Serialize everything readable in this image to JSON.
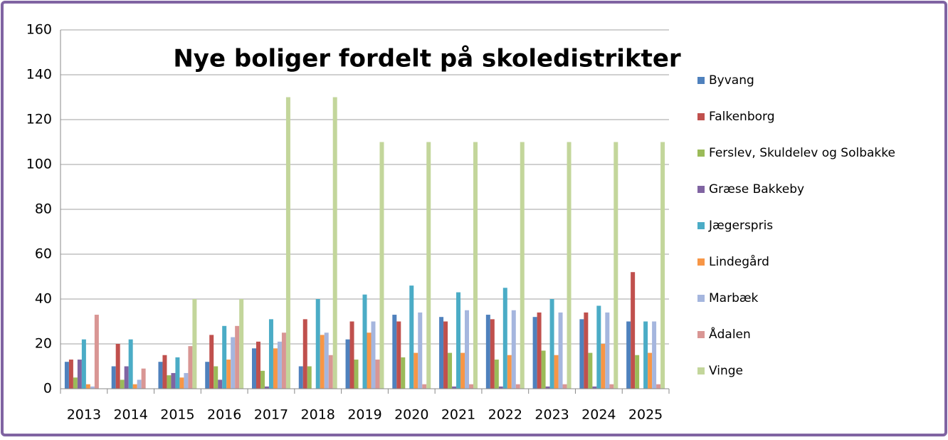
{
  "chart_data": {
    "type": "bar",
    "title": "Nye boliger fordelt på skoledistrikter",
    "categories": [
      "2013",
      "2014",
      "2015",
      "2016",
      "2017",
      "2018",
      "2019",
      "2020",
      "2021",
      "2022",
      "2023",
      "2024",
      "2025"
    ],
    "series": [
      {
        "name": "Byvang",
        "color": "#4f81bd",
        "values": [
          12,
          10,
          12,
          12,
          18,
          10,
          22,
          33,
          32,
          33,
          32,
          31,
          30
        ]
      },
      {
        "name": "Falkenborg",
        "color": "#c0504d",
        "values": [
          13,
          20,
          15,
          24,
          21,
          31,
          30,
          30,
          30,
          31,
          34,
          34,
          52
        ]
      },
      {
        "name": "Ferslev, Skuldelev og Solbakke",
        "color": "#9bbb59",
        "values": [
          5,
          4,
          6,
          10,
          8,
          10,
          13,
          14,
          16,
          13,
          17,
          16,
          15
        ]
      },
      {
        "name": "Græse Bakkeby",
        "color": "#8064a2",
        "values": [
          13,
          10,
          7,
          4,
          1,
          0,
          0,
          0,
          1,
          1,
          1,
          1,
          0
        ]
      },
      {
        "name": "Jægerspris",
        "color": "#4bacc6",
        "values": [
          22,
          22,
          14,
          28,
          31,
          40,
          42,
          46,
          43,
          45,
          40,
          37,
          30
        ]
      },
      {
        "name": "Lindegård",
        "color": "#f79646",
        "values": [
          2,
          2,
          5,
          13,
          18,
          24,
          25,
          16,
          16,
          15,
          15,
          20,
          16
        ]
      },
      {
        "name": "Marbæk",
        "color": "#a5b6de",
        "values": [
          1,
          4,
          7,
          23,
          21,
          25,
          30,
          34,
          35,
          35,
          34,
          34,
          30
        ]
      },
      {
        "name": "Ådalen",
        "color": "#d99694",
        "values": [
          33,
          9,
          19,
          28,
          25,
          15,
          13,
          2,
          2,
          2,
          2,
          2,
          2
        ]
      },
      {
        "name": "Vinge",
        "color": "#c3d69b",
        "values": [
          0,
          0,
          40,
          40,
          130,
          130,
          110,
          110,
          110,
          110,
          110,
          110,
          110
        ]
      }
    ],
    "ylim": [
      0,
      160
    ],
    "yticks": [
      0,
      20,
      40,
      60,
      80,
      100,
      120,
      140,
      160
    ],
    "grid": true,
    "legend": "right"
  }
}
